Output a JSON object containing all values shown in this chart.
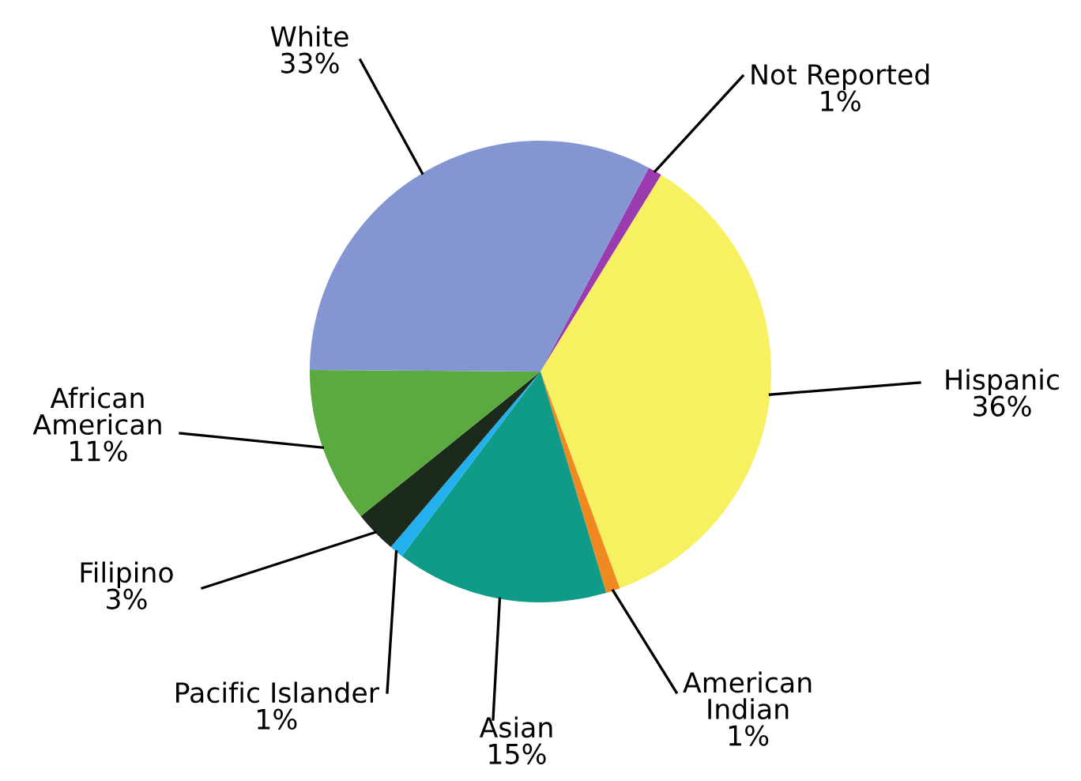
{
  "chart_data": {
    "type": "pie",
    "categories": [
      "Not Reported",
      "Hispanic",
      "American Indian",
      "Asian",
      "Pacific Islander",
      "Filipino",
      "African American",
      "White"
    ],
    "values": [
      1,
      36,
      1,
      15,
      1,
      3,
      11,
      33
    ],
    "value_labels": [
      "1%",
      "36%",
      "1%",
      "15%",
      "1%",
      "3%",
      "11%",
      "33%"
    ],
    "colors": [
      "#9a3cb0",
      "#f7f060",
      "#f08a20",
      "#109a88",
      "#22b0ee",
      "#1c2a1c",
      "#5aaa40",
      "#8496d2"
    ]
  }
}
